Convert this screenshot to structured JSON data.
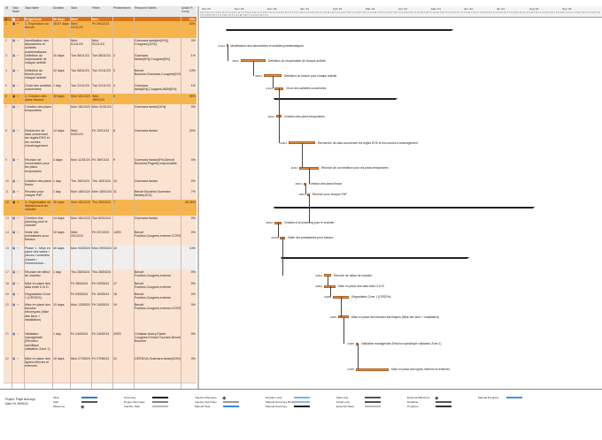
{
  "grid": {
    "headers": {
      "id": "ID",
      "mode": "Task Mode",
      "name": "Task Name",
      "duration": "Duration",
      "start": "Start",
      "finish": "Finish",
      "predecessors": "Predecessors",
      "resources": "Resource Names",
      "complete": "Actual % Comp"
    },
    "rows": [
      {
        "id": "0",
        "kind": "proj",
        "name": "Projet final",
        "dur": "49 days",
        "start": "Wed 01/11/23",
        "finish": "Mon 11/06/23",
        "pred": "",
        "res": "",
        "pc": "54%"
      },
      {
        "id": "1",
        "kind": "sum",
        "name": "1. Exploration du besoin",
        "dur": "45.67 days",
        "start": "Wed 01/11/23",
        "finish": "Fri 09/12/23",
        "pred": "",
        "res": "",
        "pc": "60%"
      },
      {
        "id": "2",
        "kind": "task",
        "name": "Identification des laboratoires et activités problématiques",
        "dur": "",
        "start": "Wed 01/11/23",
        "finish": "Wed 01/11/23",
        "pred": "",
        "res": "Guemara fanta[en(5%)], Cougnes,[10%]",
        "pc": "0%"
      },
      {
        "id": "3",
        "kind": "task",
        "name": "Définition du responsable de chaque activité",
        "dur": "10 days",
        "start": "Tue 08/11/23",
        "finish": "Tue 08/11/23",
        "pred": "3",
        "res": "Guemara fantan[5%],Cougnes[5%]",
        "pc": "1%"
      },
      {
        "id": "4",
        "kind": "task",
        "name": "Définition du besoin pour chaque activité",
        "dur": "10 days",
        "start": "Tue 08/11/23",
        "finish": "Tue 22/11/23",
        "pred": "3",
        "res": "Benoit Boucher,Guemara,Cougnes[10%]",
        "pc": "10%"
      },
      {
        "id": "5",
        "kind": "task",
        "name": "Choix des activités concernées",
        "dur": "1 day",
        "start": "Tue 21/11/23",
        "finish": "Tue 21/11/23",
        "pred": "4",
        "res": "Guemara fanta[5%],Cougnes,MDM[5%]",
        "pc": "1%"
      },
      {
        "id": "6",
        "kind": "sum",
        "name": "2. Création des plans travaux",
        "dur": "35 days",
        "start": "Mon 18/12/23",
        "finish": "Wed 18/01/24",
        "pred": "5",
        "res": "",
        "pc": "55%"
      },
      {
        "id": "7",
        "kind": "task",
        "name": "Création des plans temporaires",
        "dur": "",
        "start": "Mon 18/12/23",
        "finish": "Mon 11/01/24",
        "pred": "",
        "res": "Guemara fantan[10%]",
        "pc": "0%"
      },
      {
        "id": "8",
        "kind": "task",
        "name": "Recherche de data concernant les règles EHS et les normes d'aménagement",
        "dur": "14 days",
        "start": "Wed 04/01/24",
        "finish": "Fri 12/01/24",
        "pred": "8",
        "res": "Guemara fantan",
        "pc": "20%"
      },
      {
        "id": "9",
        "kind": "task",
        "name": "Réunion de concertation pour les plans temporaires",
        "dur": "4 days",
        "start": "Mon 11/01/24",
        "finish": "Fri 16/01/24",
        "pred": "9",
        "res": "Guemara fantan(5%),Benoit Boucher(Prignet),responsable",
        "pc": "0%"
      },
      {
        "id": "10",
        "kind": "task",
        "name": "Création des plans finaux",
        "dur": "1 day",
        "start": "Thu 15/01/24",
        "finish": "Thu 15/01/24",
        "pred": "10",
        "res": "Guemara fantan",
        "pc": "0%"
      },
      {
        "id": "11",
        "kind": "task",
        "name": "Réunion pour chaque PdP",
        "dur": "1 day",
        "start": "Mon 18/01/24",
        "finish": "Mon 18/01/24",
        "pred": "11",
        "res": "Benoit Boucher,Guemara fantan(10%)",
        "pc": "7%"
      },
      {
        "id": "12",
        "kind": "sum",
        "name": "3. Organisation du déplacement du chantier",
        "dur": "40 days",
        "start": "Mon 18/12/23",
        "finish": "Thu 25/04/24",
        "pred": "7",
        "res": "",
        "pc": "48.36%"
      },
      {
        "id": "13",
        "kind": "task",
        "name": "Création d'un planning pour le chantier",
        "dur": "14 days",
        "start": "Mon 18/12/23",
        "finish": "Tue 02/01/24",
        "pred": "",
        "res": "Guemara fantan",
        "pc": "0%"
      },
      {
        "id": "14",
        "kind": "task",
        "name": "Visite des prestataires pour travaux",
        "dur": "10 days",
        "start": "Wed 20/12/23",
        "finish": "Fri 22/12/23",
        "pred": "14SS",
        "res": "Benoit Foulkes,Cougnes,externe,CCRD(%)",
        "pc": "0%"
      },
      {
        "id": "15",
        "kind": "sel",
        "name": "Phase 1 : Mise en place des salles / pièces / contrôles d'accès / Déconnexion...",
        "dur": "40 days",
        "start": "Mon 04/03/24",
        "finish": "Mon 29/04/24",
        "pred": "15",
        "res": "",
        "pc": "14%"
      },
      {
        "id": "17",
        "kind": "task",
        "name": "Réunion de début de chantier",
        "dur": "1 day",
        "start": "Thu 25/04/24",
        "finish": "Thu 25/04/24",
        "pred": "",
        "res": "Benoit Foulkes,Cougnes,externe",
        "pc": "0%"
      },
      {
        "id": "18",
        "kind": "task",
        "name": "Mise en place des data entre 0 et D",
        "dur": "",
        "start": "Fri 26/04/24",
        "finish": "Fri 03/05/24",
        "pred": "17",
        "res": "Benoit Foulkes,Cougnes,externe",
        "pc": "0%"
      },
      {
        "id": "19",
        "kind": "task",
        "name": "Dégradation Zone 1 (CRSD%)",
        "dur": "",
        "start": "Fri 03/05/24",
        "finish": "Fri 10/05/24",
        "pred": "18",
        "res": "Benoit Foulkes,Cougnes,externe",
        "pc": "0%"
      },
      {
        "id": "20",
        "kind": "task",
        "name": "Mise en place des besoins électriques (Mise des lieux + installation)",
        "dur": "10 days",
        "start": "Mon 13/05/24",
        "finish": "Fri 24/05/24",
        "pred": "19",
        "res": "Benoit Foulkes,Cougnes,externe,CCRD(%),externe",
        "pc": "0%"
      },
      {
        "id": "21",
        "kind": "task",
        "name": "Validation managériale (Réunion spécifique validation Zone 1)",
        "dur": "1 day",
        "pred": "20SS",
        "start": "Fri 24/05/24",
        "finish": "Fri 24/05/24",
        "res": "Christian Aubry,Gisele Cougnes,Emmet Tournez,Benoit Boucher",
        "pc": "0%"
      },
      {
        "id": "22",
        "kind": "task",
        "name": "Mise en place des lignes internes et externes",
        "dur": "10 days",
        "start": "Mon 27/05/24",
        "finish": "Fri 07/06/24",
        "pred": "21",
        "res": "CERDIVA,Guemara fantan[10%]",
        "pc": "0%"
      }
    ]
  },
  "timeline": {
    "months": [
      "Oct '23",
      "Nov '23",
      "Dec '23",
      "Jan '24",
      "Feb '24",
      "Mar '24",
      "Apr '24",
      "May '24",
      "Jun '24",
      "Jul '24",
      "Aug '24",
      "Sep '24"
    ],
    "day_labels": "S M T W T F S"
  },
  "gantt": {
    "labels": [
      {
        "date": "01/11",
        "text": "Identification des laboratoires et activités problématiques"
      },
      {
        "date": "08/11",
        "text": "Définition du responsable de chaque activité"
      },
      {
        "date": "08/11",
        "text": "Définition du besoin pour chaque activité"
      },
      {
        "date": "21/11",
        "text": "Choix des activités concernées"
      },
      {
        "date": "18/12",
        "text": "Création des plans temporaires"
      },
      {
        "date": "04/01",
        "text": "Recherche de data concernant les règles EHS et les normes d'aménagement"
      },
      {
        "date": "11/01",
        "text": "Réunion de concertation pour les plans temporaires"
      },
      {
        "date": "15/01",
        "text": "Création des plans finaux"
      },
      {
        "date": "18/01",
        "text": "Réunion pour chaque PdP"
      },
      {
        "date": "18/12",
        "text": "Création d'un planning pour le chantier"
      },
      {
        "date": "20/12",
        "text": "Visite des prestataires pour travaux"
      },
      {
        "date": "25/04",
        "text": "Réunion de début de chantier"
      },
      {
        "date": "26/04",
        "text": "Mise en place des data entre 0 et D"
      },
      {
        "date": "03/05",
        "text": "Dégradation Zone 1 (CRSD%)"
      },
      {
        "date": "13/05",
        "text": "Mise en place des besoins électriques (Mise des lieux + installation)"
      },
      {
        "date": "24/05",
        "text": "Validation managériale (Réunion spécifique validation Zone 1)"
      },
      {
        "date": "27/05",
        "text": "Mise en place des lignes internes et externes"
      }
    ]
  },
  "legend": {
    "project_label": "Project: Projet final.mpp",
    "date_label": "Date: Fri 29/05/24",
    "items": [
      {
        "label": "Task",
        "col": 0
      },
      {
        "label": "Split",
        "col": 0
      },
      {
        "label": "Milestone",
        "col": 0
      },
      {
        "label": "Summary",
        "col": 1
      },
      {
        "label": "Project Summary",
        "col": 1
      },
      {
        "label": "Inactive Task",
        "col": 1
      },
      {
        "label": "Inactive Milestone",
        "col": 2
      },
      {
        "label": "Inactive Summary",
        "col": 2
      },
      {
        "label": "Manual Task",
        "col": 2
      },
      {
        "label": "Duration-only",
        "col": 3
      },
      {
        "label": "Manual Summary Rollup",
        "col": 3
      },
      {
        "label": "Manual Summary",
        "col": 3
      },
      {
        "label": "Start-only",
        "col": 4
      },
      {
        "label": "Finish-only",
        "col": 4
      },
      {
        "label": "External Tasks",
        "col": 4
      },
      {
        "label": "External Milestone",
        "col": 5
      },
      {
        "label": "Deadline",
        "col": 5
      },
      {
        "label": "Progress",
        "col": 5
      },
      {
        "label": "Manual Progress",
        "col": 6
      }
    ]
  },
  "colors": {
    "task_bar": "#e2944a",
    "summary_row": "#f6b44c",
    "project_row": "#d8761c",
    "task_row": "#fbe3d2",
    "progress": "#3a6fc4"
  }
}
